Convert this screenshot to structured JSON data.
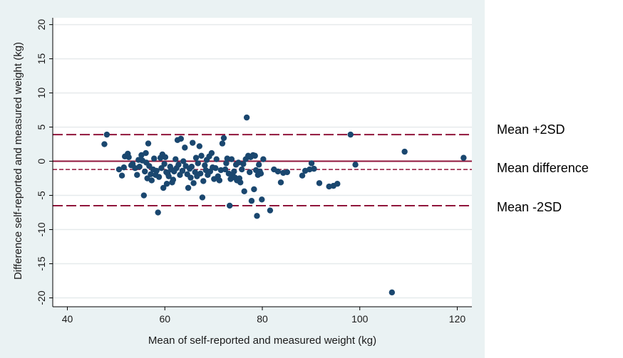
{
  "colors": {
    "panel_bg": "#eaf2f3",
    "plot_bg": "#ffffff",
    "grid": "#e6eaec",
    "point": "#1a476f",
    "line": "#90143b",
    "text": "#1a1a1a"
  },
  "chart_data": {
    "type": "scatter",
    "title": "",
    "xlabel": "Mean of self-reported and measured weight (kg)",
    "ylabel": "Difference self-reported and measured weight (kg)",
    "xlim": [
      37,
      123
    ],
    "ylim": [
      -21.3,
      21
    ],
    "xticks": [
      40,
      60,
      80,
      100,
      120
    ],
    "yticks": [
      20,
      15,
      10,
      5,
      0,
      -5,
      -10,
      -15,
      -20
    ],
    "grid": "horizontal",
    "reference_lines": [
      {
        "name": "Mean +2SD",
        "value": 3.9,
        "style": "long-dash"
      },
      {
        "name": "Zero line",
        "value": 0,
        "style": "solid"
      },
      {
        "name": "Mean difference",
        "value": -1.2,
        "style": "short-dash"
      },
      {
        "name": "Mean -2SD",
        "value": -6.5,
        "style": "long-dash"
      }
    ],
    "annotations": [
      "Mean +2SD",
      "Mean difference",
      "Mean -2SD"
    ],
    "points": [
      [
        47.6,
        2.5
      ],
      [
        48.1,
        3.9
      ],
      [
        50.6,
        -1.2
      ],
      [
        51.2,
        -2.1
      ],
      [
        51.6,
        -0.9
      ],
      [
        51.8,
        0.7
      ],
      [
        52.4,
        1.1
      ],
      [
        52.6,
        0.6
      ],
      [
        53.1,
        -0.6
      ],
      [
        53.4,
        -0.4
      ],
      [
        53.9,
        -1.0
      ],
      [
        54.3,
        -2.0
      ],
      [
        54.6,
        0.2
      ],
      [
        54.8,
        -0.8
      ],
      [
        55.2,
        0.9
      ],
      [
        55.4,
        0.1
      ],
      [
        55.7,
        -5.0
      ],
      [
        55.9,
        -1.5
      ],
      [
        56.1,
        1.2
      ],
      [
        56.2,
        -0.2
      ],
      [
        56.4,
        -2.5
      ],
      [
        56.6,
        2.6
      ],
      [
        56.8,
        -0.7
      ],
      [
        57.1,
        -1.9
      ],
      [
        57.3,
        -2.8
      ],
      [
        57.6,
        -1.2
      ],
      [
        57.8,
        0.4
      ],
      [
        58.1,
        -2.0
      ],
      [
        58.3,
        -1.4
      ],
      [
        58.6,
        -7.5
      ],
      [
        58.8,
        -2.3
      ],
      [
        59.1,
        0.5
      ],
      [
        59.3,
        -1.0
      ],
      [
        59.5,
        1.0
      ],
      [
        59.7,
        -3.9
      ],
      [
        59.9,
        -0.4
      ],
      [
        60.1,
        0.6
      ],
      [
        60.3,
        -1.6
      ],
      [
        60.4,
        -3.3
      ],
      [
        60.6,
        -1.8
      ],
      [
        60.8,
        -2.2
      ],
      [
        61.1,
        -0.8
      ],
      [
        61.3,
        -1.2
      ],
      [
        61.5,
        -3.1
      ],
      [
        61.7,
        -2.7
      ],
      [
        61.9,
        -1.5
      ],
      [
        62.2,
        0.3
      ],
      [
        62.4,
        -1.0
      ],
      [
        62.6,
        3.1
      ],
      [
        62.8,
        -0.5
      ],
      [
        63.1,
        -2.0
      ],
      [
        63.3,
        3.3
      ],
      [
        63.6,
        -1.4
      ],
      [
        63.8,
        0.0
      ],
      [
        64.1,
        2.0
      ],
      [
        64.3,
        -0.7
      ],
      [
        64.6,
        -1.9
      ],
      [
        64.8,
        -3.9
      ],
      [
        65.1,
        -1.1
      ],
      [
        65.3,
        -2.4
      ],
      [
        65.5,
        -0.8
      ],
      [
        65.7,
        2.7
      ],
      [
        65.9,
        -3.2
      ],
      [
        66.2,
        -1.6
      ],
      [
        66.4,
        0.5
      ],
      [
        66.6,
        -2.2
      ],
      [
        66.8,
        -0.3
      ],
      [
        67.1,
        2.2
      ],
      [
        67.3,
        -1.8
      ],
      [
        67.5,
        0.8
      ],
      [
        67.7,
        -5.3
      ],
      [
        67.9,
        -2.9
      ],
      [
        68.2,
        -0.6
      ],
      [
        68.4,
        -1.3
      ],
      [
        68.6,
        0.2
      ],
      [
        68.8,
        -2.0
      ],
      [
        69.1,
        0.7
      ],
      [
        69.3,
        -1.5
      ],
      [
        69.6,
        1.2
      ],
      [
        69.8,
        -0.9
      ],
      [
        70.1,
        -2.6
      ],
      [
        70.4,
        -1.0
      ],
      [
        70.6,
        0.3
      ],
      [
        70.9,
        -2.2
      ],
      [
        71.2,
        -2.8
      ],
      [
        71.5,
        -1.3
      ],
      [
        71.8,
        2.6
      ],
      [
        72.1,
        3.4
      ],
      [
        72.4,
        -1.2
      ],
      [
        72.6,
        -0.3
      ],
      [
        72.8,
        0.4
      ],
      [
        73.1,
        -1.8
      ],
      [
        73.3,
        -6.5
      ],
      [
        73.5,
        -2.6
      ],
      [
        73.7,
        0.3
      ],
      [
        73.9,
        -2.0
      ],
      [
        74.2,
        -1.5
      ],
      [
        74.4,
        -2.4
      ],
      [
        74.6,
        -0.5
      ],
      [
        74.8,
        -2.8
      ],
      [
        75.1,
        -0.2
      ],
      [
        75.3,
        -2.5
      ],
      [
        75.5,
        -3.1
      ],
      [
        75.8,
        -1.2
      ],
      [
        76.1,
        -0.4
      ],
      [
        76.3,
        -4.4
      ],
      [
        76.6,
        0.3
      ],
      [
        76.8,
        6.4
      ],
      [
        77.1,
        0.8
      ],
      [
        77.4,
        -1.6
      ],
      [
        77.6,
        0.6
      ],
      [
        77.8,
        -5.8
      ],
      [
        78.1,
        0.9
      ],
      [
        78.3,
        -4.1
      ],
      [
        78.5,
        0.8
      ],
      [
        78.7,
        -1.3
      ],
      [
        78.9,
        -8.0
      ],
      [
        79.1,
        -2.0
      ],
      [
        79.3,
        -0.5
      ],
      [
        79.5,
        -1.5
      ],
      [
        79.7,
        -1.8
      ],
      [
        79.9,
        -5.6
      ],
      [
        80.2,
        0.3
      ],
      [
        81.6,
        -7.2
      ],
      [
        82.4,
        -1.2
      ],
      [
        83.2,
        -1.5
      ],
      [
        83.8,
        -3.1
      ],
      [
        84.3,
        -1.7
      ],
      [
        85.1,
        -1.6
      ],
      [
        88.2,
        -2.1
      ],
      [
        88.8,
        -1.4
      ],
      [
        89.7,
        -1.2
      ],
      [
        90.1,
        -0.3
      ],
      [
        90.6,
        -1.1
      ],
      [
        91.7,
        -3.2
      ],
      [
        93.7,
        -3.7
      ],
      [
        94.6,
        -3.6
      ],
      [
        95.4,
        -3.3
      ],
      [
        98.1,
        3.9
      ],
      [
        99.1,
        -0.5
      ],
      [
        106.6,
        -19.2
      ],
      [
        109.2,
        1.4
      ],
      [
        121.3,
        0.5
      ]
    ]
  }
}
